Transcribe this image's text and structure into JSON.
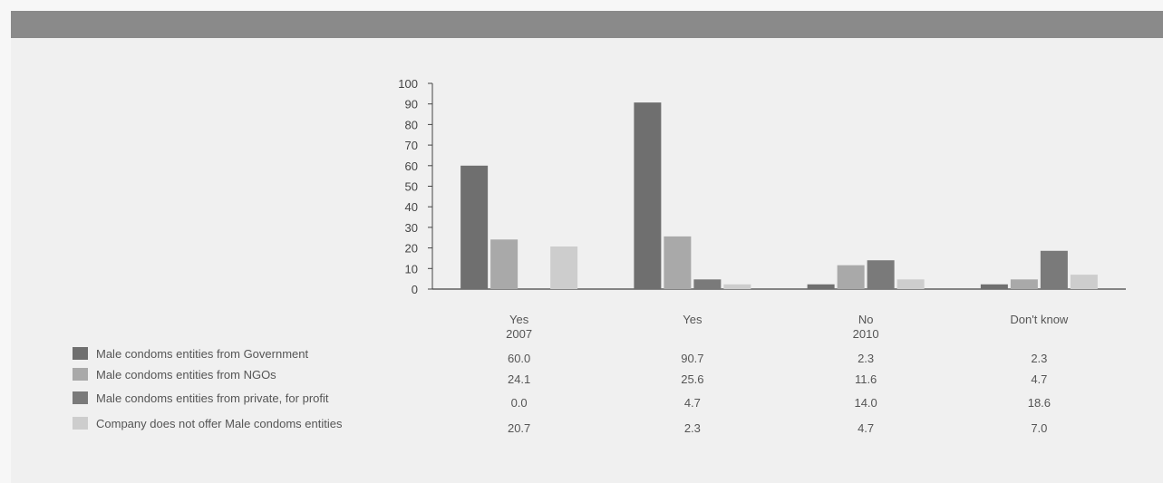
{
  "chart_data": {
    "type": "bar",
    "ylim": [
      0,
      100
    ],
    "yticks": [
      0,
      10,
      20,
      30,
      40,
      50,
      60,
      70,
      80,
      90,
      100
    ],
    "categories": [
      {
        "label": "Yes",
        "sublabel": "2007"
      },
      {
        "label": "Yes",
        "sublabel": ""
      },
      {
        "label": "No",
        "sublabel": "2010"
      },
      {
        "label": "Don't know",
        "sublabel": ""
      }
    ],
    "series": [
      {
        "name": "Male condoms entities from Government",
        "color": "#6f6f6f",
        "values": [
          "60.0",
          "90.7",
          "2.3",
          "2.3"
        ]
      },
      {
        "name": "Male condoms entities from NGOs",
        "color": "#a9a9a9",
        "values": [
          "24.1",
          "25.6",
          "11.6",
          "4.7"
        ]
      },
      {
        "name": "Male condoms entities from private, for profit",
        "color": "#7a7a7a",
        "values": [
          "0.0",
          "4.7",
          "14.0",
          "18.6"
        ]
      },
      {
        "name": "Company does not offer Male condoms entities",
        "color": "#cdcdcd",
        "values": [
          "20.7",
          "2.3",
          "4.7",
          "7.0"
        ]
      }
    ]
  }
}
